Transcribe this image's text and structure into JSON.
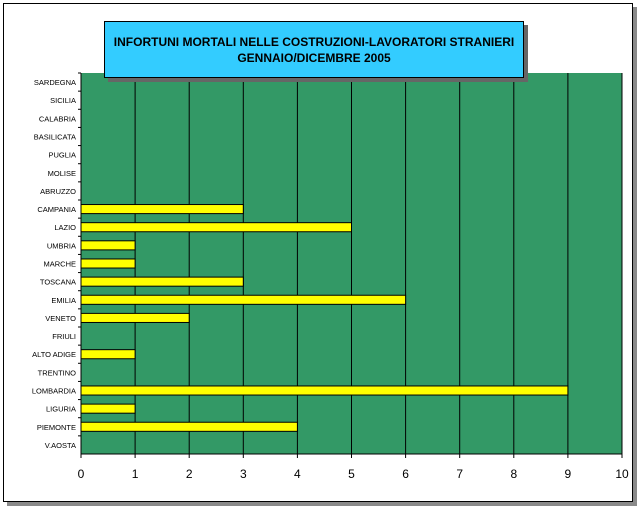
{
  "chart_data": {
    "type": "bar",
    "orientation": "horizontal",
    "title_lines": [
      "INFORTUNI MORTALI NELLE COSTRUZIONI-LAVORATORI STRANIERI",
      "GENNAIO/DICEMBRE 2005"
    ],
    "categories": [
      "SARDEGNA",
      "SICILIA",
      "CALABRIA",
      "BASILICATA",
      "PUGLIA",
      "MOLISE",
      "ABRUZZO",
      "CAMPANIA",
      "LAZIO",
      "UMBRIA",
      "MARCHE",
      "TOSCANA",
      "EMILIA",
      "VENETO",
      "FRIULI",
      "ALTO ADIGE",
      "TRENTINO",
      "LOMBARDIA",
      "LIGURIA",
      "PIEMONTE",
      "V.AOSTA"
    ],
    "values": [
      0,
      0,
      0,
      0,
      0,
      0,
      0,
      3,
      5,
      1,
      1,
      3,
      6,
      2,
      0,
      1,
      0,
      9,
      1,
      4,
      0
    ],
    "xlim": [
      0,
      10
    ],
    "xticks": [
      "0",
      "1",
      "2",
      "3",
      "4",
      "5",
      "6",
      "7",
      "8",
      "9",
      "10"
    ],
    "grid": "vertical",
    "plot_bg": "#339966",
    "bar_color": "#ffff00",
    "title_bg": "#33ccff"
  }
}
